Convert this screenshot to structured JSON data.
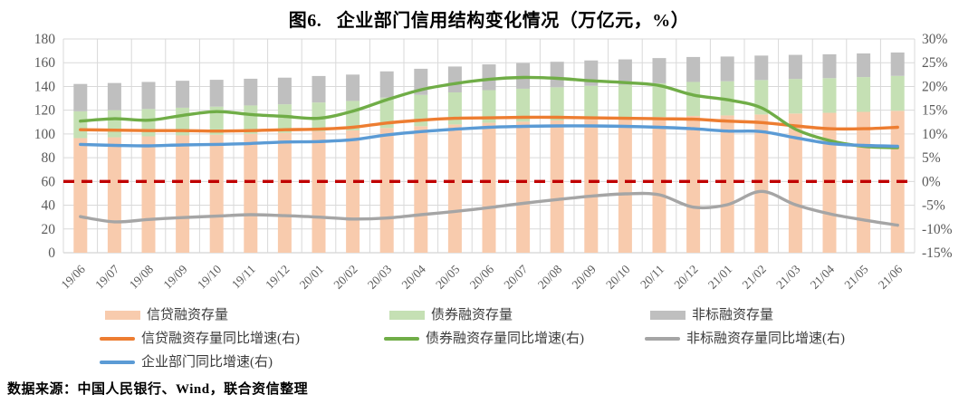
{
  "title": "图6.   企业部门信用结构变化情况（万亿元，%）",
  "source_note": "数据来源：中国人民银行、Wind，联合资信整理",
  "colors": {
    "bar_credit": "#F8CBAD",
    "bar_bond": "#C5E0B4",
    "bar_nonstandard": "#BFBFBF",
    "line_credit": "#ED7D31",
    "line_bond": "#70AD47",
    "line_nonstandard": "#A5A5A5",
    "line_enterprise": "#5B9BD5",
    "reference_line": "#C00000",
    "gridline": "#D9D9D9",
    "axis_text": "#595959"
  },
  "chart_data": {
    "type": "combo-stacked-bar-line",
    "categories": [
      "19/06",
      "19/07",
      "19/08",
      "19/09",
      "19/10",
      "19/11",
      "19/12",
      "20/01",
      "20/02",
      "20/03",
      "20/04",
      "20/05",
      "20/06",
      "20/07",
      "20/08",
      "20/09",
      "20/10",
      "20/11",
      "20/12",
      "21/01",
      "21/02",
      "21/03",
      "21/04",
      "21/05",
      "21/06"
    ],
    "left_axis": {
      "min": 0,
      "max": 180,
      "step": 20,
      "ticks": [
        "0",
        "20",
        "40",
        "60",
        "80",
        "100",
        "120",
        "140",
        "160",
        "180"
      ]
    },
    "right_axis": {
      "min": -15,
      "max": 30,
      "step": 5,
      "ticks": [
        "-15%",
        "-10%",
        "-5%",
        "0%",
        "5%",
        "10%",
        "15%",
        "20%",
        "25%",
        "30%"
      ]
    },
    "grid": true,
    "legend_position": "bottom",
    "bar_series": [
      {
        "name": "信贷融资存量",
        "axis": "left",
        "color_key": "bar_credit",
        "values": [
          96.5,
          97.2,
          98.0,
          98.8,
          99.4,
          100.2,
          101.0,
          102.3,
          103.0,
          105.0,
          106.5,
          108.0,
          109.4,
          110.4,
          111.4,
          112.4,
          113.2,
          114.2,
          115.2,
          115.6,
          116.4,
          117.2,
          117.8,
          118.6,
          119.5
        ]
      },
      {
        "name": "债券融资存量",
        "axis": "left",
        "color_key": "bar_bond",
        "values": [
          22.6,
          22.8,
          23.0,
          23.3,
          23.6,
          23.8,
          24.0,
          24.2,
          24.8,
          25.6,
          26.4,
          27.0,
          27.5,
          27.7,
          27.9,
          28.1,
          28.3,
          28.5,
          28.6,
          28.8,
          29.0,
          29.1,
          29.2,
          29.3,
          29.4
        ]
      },
      {
        "name": "非标融资存量",
        "axis": "left",
        "color_key": "bar_nonstandard",
        "values": [
          23.0,
          22.9,
          22.8,
          22.7,
          22.6,
          22.5,
          22.4,
          22.3,
          22.2,
          22.1,
          22.0,
          21.8,
          21.7,
          21.6,
          21.5,
          21.4,
          21.3,
          21.2,
          21.0,
          20.8,
          20.6,
          20.3,
          20.1,
          19.9,
          19.7
        ]
      }
    ],
    "line_series": [
      {
        "name": "信贷融资存量同比增速(右)",
        "axis": "right",
        "color_key": "line_credit",
        "values": [
          10.9,
          10.8,
          10.7,
          10.7,
          10.6,
          10.7,
          10.9,
          11.0,
          11.4,
          12.3,
          12.9,
          13.3,
          13.4,
          13.5,
          13.5,
          13.4,
          13.3,
          13.2,
          13.1,
          12.7,
          12.4,
          11.7,
          11.1,
          11.1,
          11.4
        ]
      },
      {
        "name": "债券融资存量同比增速(右)",
        "axis": "right",
        "color_key": "line_bond",
        "values": [
          12.7,
          13.2,
          12.9,
          13.9,
          14.7,
          14.1,
          13.7,
          13.3,
          14.8,
          17.2,
          19.3,
          20.6,
          21.5,
          21.9,
          21.7,
          21.2,
          20.8,
          20.2,
          18.2,
          17.2,
          15.5,
          11.0,
          8.6,
          7.4,
          7.1
        ]
      },
      {
        "name": "非标融资存量同比增速(右)",
        "axis": "right",
        "color_key": "line_nonstandard",
        "values": [
          -7.4,
          -8.5,
          -8.0,
          -7.6,
          -7.3,
          -7.0,
          -7.2,
          -7.5,
          -7.9,
          -7.7,
          -7.0,
          -6.3,
          -5.5,
          -4.6,
          -3.8,
          -3.1,
          -2.6,
          -2.8,
          -5.4,
          -4.9,
          -2.1,
          -4.9,
          -6.8,
          -8.1,
          -9.2
        ]
      },
      {
        "name": "企业部门同比增速(右)",
        "axis": "right",
        "color_key": "line_enterprise",
        "values": [
          7.8,
          7.6,
          7.5,
          7.7,
          7.8,
          8.0,
          8.3,
          8.4,
          8.8,
          9.8,
          10.5,
          11.0,
          11.4,
          11.6,
          11.7,
          11.7,
          11.6,
          11.4,
          11.1,
          10.6,
          10.5,
          9.2,
          8.0,
          7.6,
          7.4
        ]
      }
    ],
    "reference_line": {
      "value": 0,
      "axis": "right",
      "style": "dashed",
      "color_key": "reference_line"
    }
  }
}
